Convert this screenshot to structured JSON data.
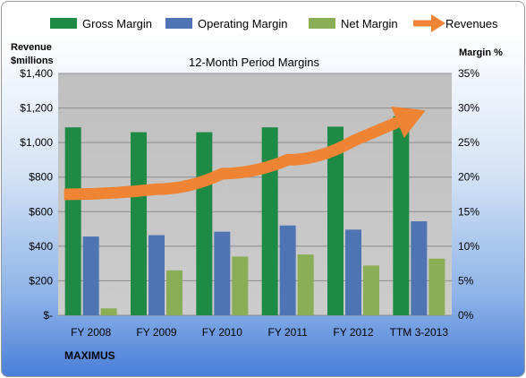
{
  "chart_data": {
    "type": "bar",
    "title": "12-Month Period Margins",
    "brand": "MAXIMUS",
    "y_left_label": [
      "Revenue",
      "$millions"
    ],
    "y_right_label": "Margin %",
    "categories": [
      "FY 2008",
      "FY 2009",
      "FY 2010",
      "FY 2011",
      "FY 2012",
      "TTM 3-2013"
    ],
    "left_axis": {
      "ylim": [
        0,
        1400
      ],
      "ticks": [
        "$-",
        "$200",
        "$400",
        "$600",
        "$800",
        "$1,000",
        "$1,200",
        "$1,400"
      ]
    },
    "right_axis": {
      "ylim": [
        0,
        35
      ],
      "ticks": [
        "0%",
        "5%",
        "10%",
        "15%",
        "20%",
        "25%",
        "30%",
        "35%"
      ]
    },
    "series": [
      {
        "name": "Gross Margin",
        "axis": "right",
        "kind": "bar",
        "color": "#1e8a46",
        "values": [
          27.2,
          26.5,
          26.5,
          27.2,
          27.3,
          28.8
        ]
      },
      {
        "name": "Operating Margin",
        "axis": "right",
        "kind": "bar",
        "color": "#4f74b3",
        "values": [
          11.4,
          11.6,
          12.1,
          13.0,
          12.4,
          13.6
        ]
      },
      {
        "name": "Net Margin",
        "axis": "right",
        "kind": "bar",
        "color": "#8aae56",
        "values": [
          1.0,
          6.5,
          8.5,
          8.8,
          7.2,
          8.2
        ]
      },
      {
        "name": "Revenues",
        "axis": "left",
        "kind": "arrow",
        "color": "#ee8434",
        "values": [
          700,
          730,
          820,
          900,
          1010,
          1170
        ]
      }
    ],
    "grid": true,
    "legend": "top"
  }
}
